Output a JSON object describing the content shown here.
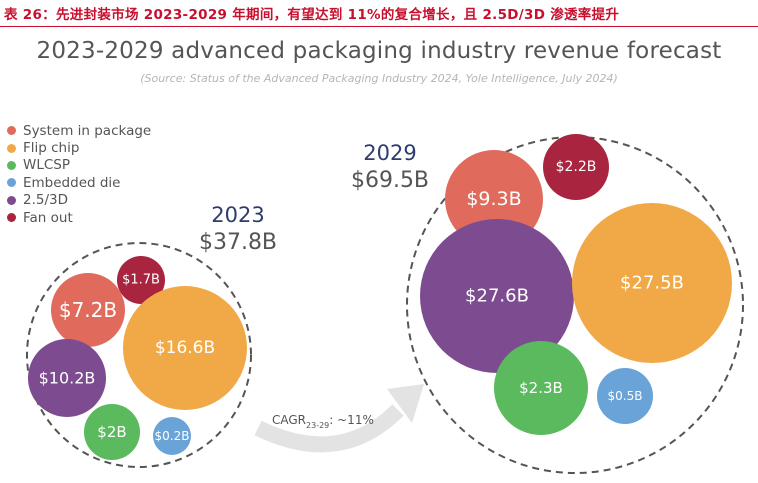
{
  "caption": "表 26：先进封装市场 2023-2029 年期间，有望达到 11%的复合增长，且 2.5D/3D 渗透率提升",
  "chart_data": {
    "type": "bubble",
    "title": "2023-2029 advanced packaging industry revenue forecast",
    "subtitle": "(Source: Status of the Advanced Packaging Industry 2024, Yole Intelligence, July 2024)",
    "legend_position": "top-left",
    "legend": [
      {
        "name": "System in package",
        "color": "#e06b5c"
      },
      {
        "name": "Flip chip",
        "color": "#f1a947"
      },
      {
        "name": "WLCSP",
        "color": "#5bb95e"
      },
      {
        "name": "Embedded die",
        "color": "#6aa3d8"
      },
      {
        "name": "2.5/3D",
        "color": "#7d4b8f"
      },
      {
        "name": "Fan out",
        "color": "#a8243f"
      }
    ],
    "groups": [
      {
        "year": "2023",
        "total_label": "$37.8B",
        "bubbles": [
          {
            "segment": "System in package",
            "value": 7.2,
            "label": "$7.2B"
          },
          {
            "segment": "Fan out",
            "value": 1.7,
            "label": "$1.7B"
          },
          {
            "segment": "Flip chip",
            "value": 16.6,
            "label": "$16.6B"
          },
          {
            "segment": "2.5/3D",
            "value": 10.2,
            "label": "$10.2B"
          },
          {
            "segment": "WLCSP",
            "value": 2.0,
            "label": "$2B"
          },
          {
            "segment": "Embedded die",
            "value": 0.2,
            "label": "$0.2B"
          }
        ]
      },
      {
        "year": "2029",
        "total_label": "$69.5B",
        "bubbles": [
          {
            "segment": "System in package",
            "value": 9.3,
            "label": "$9.3B"
          },
          {
            "segment": "Fan out",
            "value": 2.2,
            "label": "$2.2B"
          },
          {
            "segment": "2.5/3D",
            "value": 27.6,
            "label": "$27.6B"
          },
          {
            "segment": "Flip chip",
            "value": 27.5,
            "label": "$27.5B"
          },
          {
            "segment": "WLCSP",
            "value": 2.3,
            "label": "$2.3B"
          },
          {
            "segment": "Embedded die",
            "value": 0.5,
            "label": "$0.5B"
          }
        ]
      }
    ],
    "annotation": {
      "cagr_prefix": "CAGR",
      "cagr_sub": "23-29",
      "cagr_value": ": ~11%"
    }
  }
}
